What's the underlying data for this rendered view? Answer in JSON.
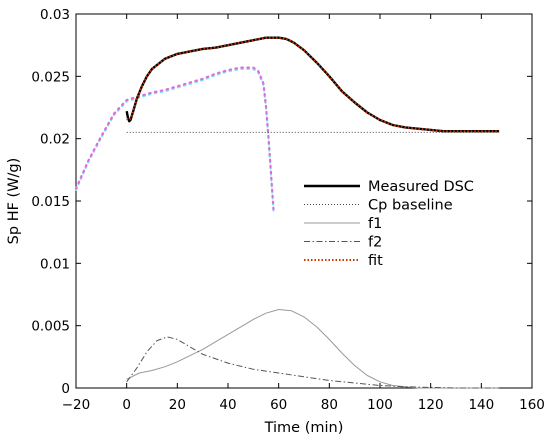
{
  "chart_data": {
    "type": "line",
    "xlabel": "Time (min)",
    "ylabel": "Sp HF (W/g)",
    "xlim": [
      -20,
      160
    ],
    "ylim": [
      0,
      0.03
    ],
    "x_ticks": [
      -20,
      0,
      20,
      40,
      60,
      80,
      100,
      120,
      140,
      160
    ],
    "x_tick_labels": [
      "−20",
      "0",
      "20",
      "40",
      "60",
      "80",
      "100",
      "120",
      "140",
      "160"
    ],
    "y_ticks": [
      0,
      0.005,
      0.01,
      0.015,
      0.02,
      0.025,
      0.03
    ],
    "y_tick_labels": [
      "0",
      "0.005",
      "0.01",
      "0.015",
      "0.02",
      "0.025",
      "0.03"
    ],
    "grid": false,
    "legend_position": "right",
    "series": [
      {
        "name": "Measured DSC",
        "color": "#000000",
        "style": "solid",
        "x": [
          0,
          0.5,
          1,
          1.5,
          2,
          3,
          4,
          6,
          8,
          10,
          15,
          20,
          25,
          30,
          35,
          40,
          45,
          50,
          55,
          60,
          63,
          66,
          70,
          75,
          80,
          85,
          90,
          95,
          100,
          105,
          110,
          115,
          120,
          125,
          130,
          135,
          140,
          145,
          147
        ],
        "y": [
          0.0222,
          0.0217,
          0.0214,
          0.0215,
          0.0218,
          0.0225,
          0.0232,
          0.0242,
          0.025,
          0.0256,
          0.0264,
          0.0268,
          0.027,
          0.0272,
          0.0273,
          0.0275,
          0.0277,
          0.0279,
          0.0281,
          0.0281,
          0.028,
          0.0277,
          0.0271,
          0.0261,
          0.025,
          0.0238,
          0.0229,
          0.0221,
          0.0215,
          0.0211,
          0.0209,
          0.0208,
          0.0207,
          0.0206,
          0.0206,
          0.0206,
          0.0206,
          0.0206,
          0.0206
        ]
      },
      {
        "name": "Cp baseline",
        "color": "#444444",
        "style": "dotted",
        "x": [
          0,
          147
        ],
        "y": [
          0.0205,
          0.0205
        ]
      },
      {
        "name": "f1",
        "color": "#999999",
        "style": "solid",
        "x": [
          0,
          5,
          10,
          15,
          20,
          25,
          30,
          35,
          40,
          45,
          50,
          55,
          60,
          65,
          70,
          75,
          80,
          85,
          90,
          95,
          100,
          105,
          110,
          115,
          120,
          130,
          140,
          147
        ],
        "y": [
          0.0007,
          0.0012,
          0.0014,
          0.0017,
          0.0021,
          0.0026,
          0.0031,
          0.0037,
          0.0043,
          0.0049,
          0.0055,
          0.006,
          0.0063,
          0.0062,
          0.0057,
          0.0049,
          0.0039,
          0.0028,
          0.0018,
          0.001,
          0.0005,
          0.0002,
          0.0001,
          0.0,
          0.0,
          0.0,
          0.0,
          0.0
        ]
      },
      {
        "name": "f2",
        "color": "#555555",
        "style": "dashdot",
        "x": [
          0,
          4,
          8,
          12,
          16,
          20,
          25,
          30,
          40,
          50,
          60,
          70,
          80,
          90,
          100,
          110,
          120,
          130,
          140,
          147
        ],
        "y": [
          0.0005,
          0.0016,
          0.0029,
          0.0038,
          0.0041,
          0.0039,
          0.0033,
          0.0027,
          0.002,
          0.0015,
          0.0012,
          0.0009,
          0.0006,
          0.0004,
          0.0002,
          0.0001,
          5e-05,
          0.0,
          0.0,
          0.0
        ]
      },
      {
        "name": "fit",
        "color": "#cc3300",
        "style": "dotted",
        "x": [
          0,
          1,
          2,
          3,
          4,
          6,
          8,
          10,
          15,
          20,
          25,
          30,
          35,
          40,
          45,
          50,
          55,
          60,
          63,
          66,
          70,
          75,
          80,
          85,
          90,
          95,
          100,
          105,
          110,
          115,
          120,
          125,
          130,
          135,
          140,
          145,
          147
        ],
        "y": [
          0.0216,
          0.0215,
          0.0218,
          0.0225,
          0.0232,
          0.0242,
          0.025,
          0.0256,
          0.0264,
          0.0268,
          0.027,
          0.0272,
          0.0273,
          0.0275,
          0.0277,
          0.0279,
          0.0281,
          0.0281,
          0.028,
          0.0277,
          0.0271,
          0.0261,
          0.025,
          0.0238,
          0.0229,
          0.0221,
          0.0215,
          0.0211,
          0.0209,
          0.0208,
          0.0207,
          0.0206,
          0.0206,
          0.0206,
          0.0206,
          0.0206,
          0.0206
        ]
      },
      {
        "color": "#7fe3f0",
        "style": "dotted",
        "x": [
          -20,
          -15,
          -10,
          -5,
          0,
          5,
          10,
          15,
          20,
          25,
          30,
          35,
          40,
          45,
          50,
          52,
          54,
          55,
          56,
          57,
          58
        ],
        "y": [
          0.0159,
          0.0182,
          0.0201,
          0.0219,
          0.023,
          0.0233,
          0.0236,
          0.0238,
          0.0241,
          0.0244,
          0.0247,
          0.0251,
          0.0254,
          0.0256,
          0.0256,
          0.0253,
          0.0243,
          0.0225,
          0.02,
          0.017,
          0.0141
        ]
      },
      {
        "color": "#e06be0",
        "style": "dotted",
        "x": [
          -20,
          -15,
          -10,
          -5,
          0,
          5,
          10,
          15,
          20,
          25,
          30,
          35,
          40,
          45,
          50,
          52,
          54,
          55,
          56,
          57,
          58
        ],
        "y": [
          0.016,
          0.0183,
          0.0202,
          0.022,
          0.0231,
          0.0234,
          0.0237,
          0.0239,
          0.0242,
          0.0245,
          0.0248,
          0.0252,
          0.0255,
          0.0257,
          0.0257,
          0.0254,
          0.0244,
          0.0226,
          0.0201,
          0.0171,
          0.0142
        ]
      }
    ]
  }
}
